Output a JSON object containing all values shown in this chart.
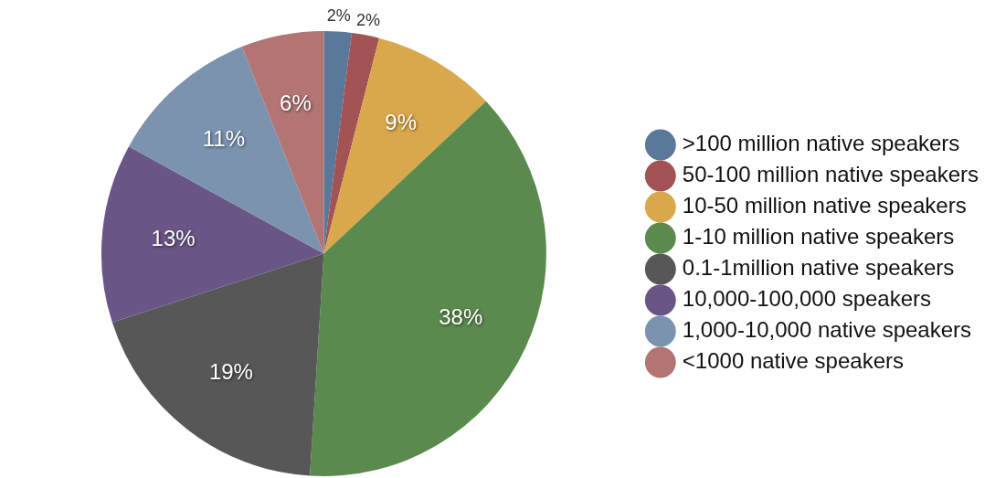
{
  "chart_data": {
    "type": "pie",
    "categories": [
      ">100 million native speakers",
      "50-100 million native speakers",
      "10-50 million native speakers",
      "1-10 million native speakers",
      "0.1-1million native speakers",
      "10,000-100,000 speakers",
      "1,000-10,000 native speakers",
      "<1000 native speakers"
    ],
    "values": [
      2,
      2,
      9,
      38,
      19,
      13,
      11,
      6
    ],
    "colors": [
      "#5a7899",
      "#a35353",
      "#d9a84c",
      "#5a8a4e",
      "#575757",
      "#6a5686",
      "#7b93ae",
      "#b37474"
    ],
    "value_labels": [
      "2%",
      "2%",
      "9%",
      "38%",
      "19%",
      "13%",
      "11%",
      "6%"
    ],
    "legend": "right"
  }
}
